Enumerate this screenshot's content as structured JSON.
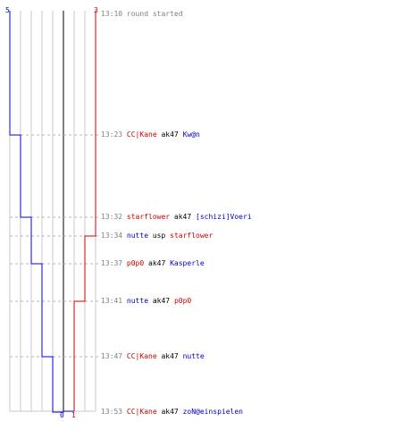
{
  "timeline": {
    "team_left": {
      "color": "#0000cc",
      "start": "5",
      "end": "0"
    },
    "team_right": {
      "color": "#cc0000",
      "start": "3",
      "end": "1"
    }
  },
  "events": [
    {
      "time": "13:10",
      "kind": "plain",
      "text": "round started"
    },
    {
      "time": "13:23",
      "kind": "kill",
      "killer": "CC|Kane",
      "killer_team": "red",
      "weapon": "ak47",
      "victim": "Kw@n",
      "victim_team": "blue"
    },
    {
      "time": "13:32",
      "kind": "kill",
      "killer": "starflower",
      "killer_team": "red",
      "weapon": "ak47",
      "victim": "[schizi]Voeri",
      "victim_team": "blue"
    },
    {
      "time": "13:34",
      "kind": "kill",
      "killer": "nutte",
      "killer_team": "blue",
      "weapon": "usp",
      "victim": "starflower",
      "victim_team": "red"
    },
    {
      "time": "13:37",
      "kind": "kill",
      "killer": "p0p0",
      "killer_team": "red",
      "weapon": "ak47",
      "victim": "Kasperle",
      "victim_team": "blue"
    },
    {
      "time": "13:41",
      "kind": "kill",
      "killer": "nutte",
      "killer_team": "blue",
      "weapon": "ak47",
      "victim": "p0p0",
      "victim_team": "red"
    },
    {
      "time": "13:47",
      "kind": "kill",
      "killer": "CC|Kane",
      "killer_team": "red",
      "weapon": "ak47",
      "victim": "nutte",
      "victim_team": "blue"
    },
    {
      "time": "13:53",
      "kind": "kill",
      "killer": "CC|Kane",
      "killer_team": "red",
      "weapon": "ak47",
      "victim": "zoN@einspielen",
      "victim_team": "blue"
    }
  ]
}
